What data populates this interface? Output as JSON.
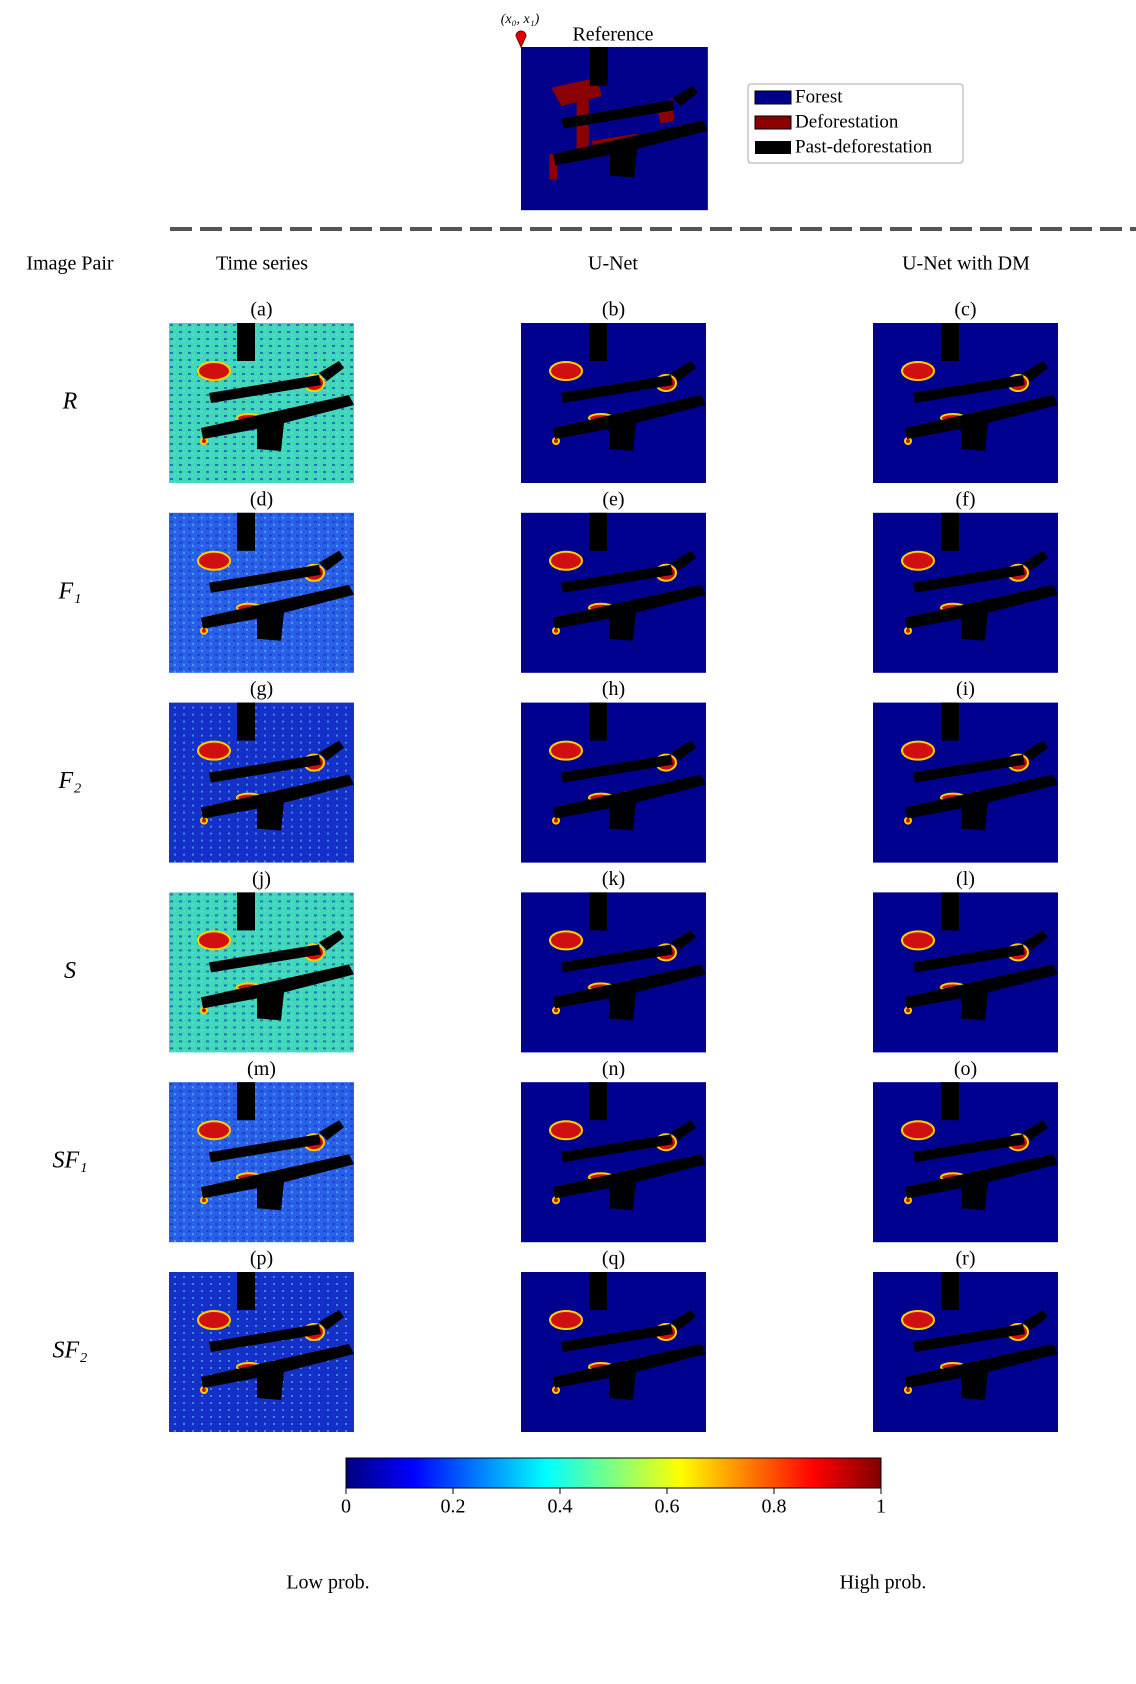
{
  "reference": {
    "marker": "(x₀, x₁)",
    "title": "Reference"
  },
  "legend": [
    "Forest",
    "Deforestation",
    "Past-deforestation"
  ],
  "header": {
    "row_label": "Image Pair",
    "columns": [
      "Time series",
      "U-Net",
      "U-Net with DM"
    ]
  },
  "rows": [
    {
      "label": "R",
      "panels": [
        "(a)",
        "(b)",
        "(c)"
      ]
    },
    {
      "label": "F₁",
      "panels": [
        "(d)",
        "(e)",
        "(f)"
      ]
    },
    {
      "label": "F₂",
      "panels": [
        "(g)",
        "(h)",
        "(i)"
      ]
    },
    {
      "label": "S",
      "panels": [
        "(j)",
        "(k)",
        "(l)"
      ]
    },
    {
      "label": "SF₁",
      "panels": [
        "(m)",
        "(n)",
        "(o)"
      ]
    },
    {
      "label": "SF₂",
      "panels": [
        "(p)",
        "(q)",
        "(r)"
      ]
    }
  ],
  "colorbar": {
    "ticks": [
      0,
      0.2,
      0.4,
      0.6,
      0.8,
      1
    ],
    "low": "Low prob.",
    "high": "High prob."
  }
}
